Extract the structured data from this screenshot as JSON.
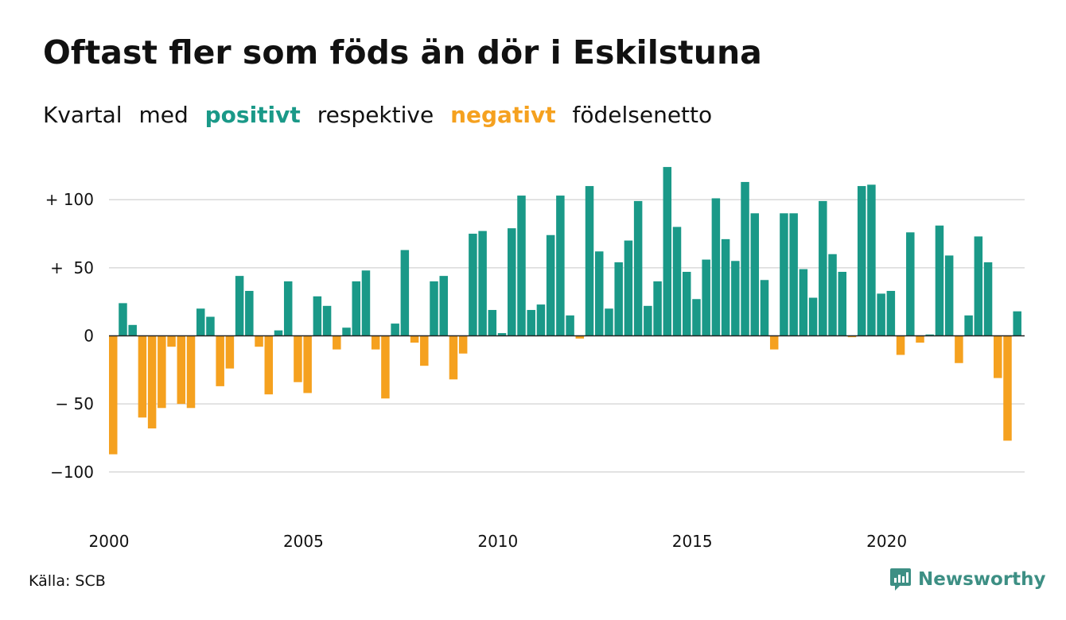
{
  "title": "Oftast fler som föds än dör i Eskilstuna",
  "subtitle": {
    "w1": "Kvartal",
    "w2": "med",
    "positive_word": "positivt",
    "w3": "respektive",
    "negative_word": "negativt",
    "w4": "födelsenetto"
  },
  "source": "Källa: SCB",
  "brand": {
    "name": "Newsworthy",
    "icon": "newsworthy-logo-icon"
  },
  "colors": {
    "positive": "#1a9988",
    "negative": "#f5a11f",
    "grid": "#d9d9d9",
    "zero": "#222222"
  },
  "chart_data": {
    "type": "bar",
    "x_unit": "quarter",
    "start": "2000 Q1",
    "ylim": [
      -130,
      130
    ],
    "grid": true,
    "yticks": [
      {
        "value": 100,
        "label": "+ 100"
      },
      {
        "value": 50,
        "label": "+  50"
      },
      {
        "value": 0,
        "label": "0"
      },
      {
        "value": -50,
        "label": "− 50"
      },
      {
        "value": -100,
        "label": "−100"
      }
    ],
    "xticks": [
      {
        "value": 2000,
        "label": "2000"
      },
      {
        "value": 2005,
        "label": "2005"
      },
      {
        "value": 2010,
        "label": "2010"
      },
      {
        "value": 2015,
        "label": "2015"
      },
      {
        "value": 2020,
        "label": "2020"
      }
    ],
    "values": [
      -87,
      24,
      8,
      -60,
      -68,
      -53,
      -8,
      -50,
      -53,
      20,
      14,
      -37,
      -24,
      44,
      33,
      -8,
      -43,
      4,
      40,
      -34,
      -42,
      29,
      22,
      -10,
      6,
      40,
      48,
      -10,
      -46,
      9,
      63,
      -5,
      -22,
      40,
      44,
      -32,
      -13,
      75,
      77,
      19,
      2,
      79,
      103,
      19,
      23,
      74,
      103,
      15,
      -2,
      110,
      62,
      20,
      54,
      70,
      99,
      22,
      40,
      124,
      80,
      47,
      27,
      56,
      101,
      71,
      55,
      113,
      90,
      41,
      -10,
      90,
      90,
      49,
      28,
      99,
      60,
      47,
      -1,
      110,
      111,
      31,
      33,
      -14,
      76,
      -5,
      1,
      81,
      59,
      -20,
      15,
      73,
      54,
      -31,
      -77,
      18
    ]
  }
}
